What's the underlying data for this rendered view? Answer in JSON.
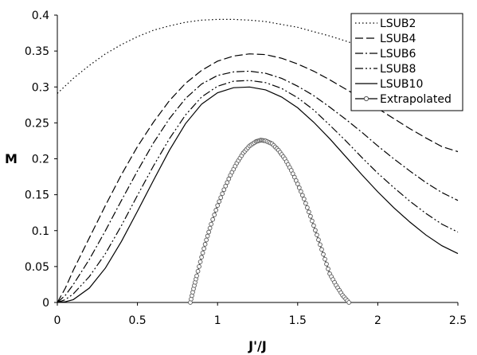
{
  "chart_data": {
    "type": "line",
    "title": "",
    "xlabel": "J'/J",
    "ylabel": "M",
    "xlim": [
      0,
      2.5
    ],
    "ylim": [
      0,
      0.4
    ],
    "x_ticks": [
      0,
      0.5,
      1,
      1.5,
      2,
      2.5
    ],
    "x_tick_labels": [
      "0",
      "0.5",
      "1",
      "1.5",
      "2",
      "2.5"
    ],
    "y_ticks": [
      0,
      0.05,
      0.1,
      0.15,
      0.2,
      0.25,
      0.3,
      0.35,
      0.4
    ],
    "y_tick_labels": [
      "0",
      "0.05",
      "0.1",
      "0.15",
      "0.2",
      "0.25",
      "0.3",
      "0.35",
      "0.4"
    ],
    "grid": false,
    "legend_position": "top-right",
    "series": [
      {
        "name": "LSUB2",
        "style": "dotted",
        "color": "#000000",
        "points": [
          [
            0,
            0.291
          ],
          [
            0.1,
            0.312
          ],
          [
            0.2,
            0.33
          ],
          [
            0.3,
            0.346
          ],
          [
            0.4,
            0.359
          ],
          [
            0.5,
            0.37
          ],
          [
            0.6,
            0.379
          ],
          [
            0.7,
            0.385
          ],
          [
            0.8,
            0.39
          ],
          [
            0.9,
            0.393
          ],
          [
            1.0,
            0.394
          ],
          [
            1.1,
            0.394
          ],
          [
            1.2,
            0.393
          ],
          [
            1.3,
            0.391
          ],
          [
            1.4,
            0.387
          ],
          [
            1.5,
            0.383
          ],
          [
            1.6,
            0.377
          ],
          [
            1.7,
            0.371
          ],
          [
            1.8,
            0.364
          ],
          [
            1.9,
            0.356
          ],
          [
            2.0,
            0.348
          ],
          [
            2.1,
            0.339
          ]
        ]
      },
      {
        "name": "LSUB4",
        "style": "dashed",
        "color": "#000000",
        "points": [
          [
            0,
            0
          ],
          [
            0.05,
            0.02
          ],
          [
            0.1,
            0.045
          ],
          [
            0.2,
            0.09
          ],
          [
            0.3,
            0.135
          ],
          [
            0.4,
            0.178
          ],
          [
            0.5,
            0.217
          ],
          [
            0.6,
            0.251
          ],
          [
            0.7,
            0.281
          ],
          [
            0.8,
            0.305
          ],
          [
            0.9,
            0.323
          ],
          [
            1.0,
            0.336
          ],
          [
            1.1,
            0.343
          ],
          [
            1.2,
            0.346
          ],
          [
            1.3,
            0.345
          ],
          [
            1.4,
            0.34
          ],
          [
            1.5,
            0.332
          ],
          [
            1.6,
            0.322
          ],
          [
            1.7,
            0.31
          ],
          [
            1.8,
            0.297
          ],
          [
            1.9,
            0.284
          ],
          [
            2.0,
            0.27
          ],
          [
            2.1,
            0.256
          ],
          [
            2.2,
            0.242
          ],
          [
            2.3,
            0.229
          ],
          [
            2.4,
            0.217
          ],
          [
            2.5,
            0.21
          ]
        ]
      },
      {
        "name": "LSUB6",
        "style": "dash-dot",
        "color": "#000000",
        "points": [
          [
            0,
            0
          ],
          [
            0.05,
            0.01
          ],
          [
            0.1,
            0.025
          ],
          [
            0.2,
            0.06
          ],
          [
            0.3,
            0.1
          ],
          [
            0.4,
            0.142
          ],
          [
            0.5,
            0.183
          ],
          [
            0.6,
            0.222
          ],
          [
            0.7,
            0.256
          ],
          [
            0.8,
            0.284
          ],
          [
            0.9,
            0.304
          ],
          [
            1.0,
            0.316
          ],
          [
            1.1,
            0.321
          ],
          [
            1.2,
            0.322
          ],
          [
            1.3,
            0.319
          ],
          [
            1.4,
            0.312
          ],
          [
            1.5,
            0.301
          ],
          [
            1.6,
            0.288
          ],
          [
            1.7,
            0.272
          ],
          [
            1.8,
            0.255
          ],
          [
            1.9,
            0.237
          ],
          [
            2.0,
            0.218
          ],
          [
            2.1,
            0.2
          ],
          [
            2.2,
            0.183
          ],
          [
            2.3,
            0.167
          ],
          [
            2.4,
            0.153
          ],
          [
            2.5,
            0.142
          ]
        ]
      },
      {
        "name": "LSUB8",
        "style": "dash-dot-dot",
        "color": "#000000",
        "points": [
          [
            0,
            0
          ],
          [
            0.05,
            0.004
          ],
          [
            0.1,
            0.012
          ],
          [
            0.2,
            0.036
          ],
          [
            0.3,
            0.068
          ],
          [
            0.4,
            0.107
          ],
          [
            0.5,
            0.149
          ],
          [
            0.6,
            0.19
          ],
          [
            0.7,
            0.228
          ],
          [
            0.8,
            0.261
          ],
          [
            0.9,
            0.286
          ],
          [
            1.0,
            0.301
          ],
          [
            1.1,
            0.308
          ],
          [
            1.2,
            0.309
          ],
          [
            1.3,
            0.306
          ],
          [
            1.4,
            0.298
          ],
          [
            1.5,
            0.285
          ],
          [
            1.6,
            0.268
          ],
          [
            1.7,
            0.247
          ],
          [
            1.8,
            0.225
          ],
          [
            1.9,
            0.202
          ],
          [
            2.0,
            0.18
          ],
          [
            2.1,
            0.16
          ],
          [
            2.2,
            0.141
          ],
          [
            2.3,
            0.124
          ],
          [
            2.4,
            0.109
          ],
          [
            2.5,
            0.098
          ]
        ]
      },
      {
        "name": "LSUB10",
        "style": "solid",
        "color": "#000000",
        "points": [
          [
            0,
            0
          ],
          [
            0.05,
            0.001
          ],
          [
            0.1,
            0.004
          ],
          [
            0.2,
            0.02
          ],
          [
            0.3,
            0.048
          ],
          [
            0.4,
            0.085
          ],
          [
            0.5,
            0.127
          ],
          [
            0.6,
            0.17
          ],
          [
            0.7,
            0.212
          ],
          [
            0.8,
            0.249
          ],
          [
            0.9,
            0.276
          ],
          [
            1.0,
            0.292
          ],
          [
            1.1,
            0.299
          ],
          [
            1.2,
            0.3
          ],
          [
            1.3,
            0.296
          ],
          [
            1.4,
            0.286
          ],
          [
            1.5,
            0.271
          ],
          [
            1.6,
            0.251
          ],
          [
            1.7,
            0.228
          ],
          [
            1.8,
            0.203
          ],
          [
            1.9,
            0.178
          ],
          [
            2.0,
            0.154
          ],
          [
            2.1,
            0.132
          ],
          [
            2.2,
            0.112
          ],
          [
            2.3,
            0.094
          ],
          [
            2.4,
            0.079
          ],
          [
            2.5,
            0.068
          ]
        ]
      },
      {
        "name": "Extrapolated",
        "style": "solid-markers",
        "color": "#000000",
        "points": [
          [
            0.83,
            0
          ],
          [
            0.85,
            0.019
          ],
          [
            0.87,
            0.037
          ],
          [
            0.9,
            0.063
          ],
          [
            0.93,
            0.087
          ],
          [
            0.96,
            0.109
          ],
          [
            1.0,
            0.135
          ],
          [
            1.04,
            0.157
          ],
          [
            1.08,
            0.177
          ],
          [
            1.12,
            0.194
          ],
          [
            1.16,
            0.208
          ],
          [
            1.2,
            0.218
          ],
          [
            1.24,
            0.224
          ],
          [
            1.27,
            0.226
          ],
          [
            1.3,
            0.225
          ],
          [
            1.34,
            0.221
          ],
          [
            1.38,
            0.212
          ],
          [
            1.42,
            0.2
          ],
          [
            1.46,
            0.184
          ],
          [
            1.5,
            0.165
          ],
          [
            1.54,
            0.144
          ],
          [
            1.58,
            0.12
          ],
          [
            1.62,
            0.094
          ],
          [
            1.66,
            0.067
          ],
          [
            1.7,
            0.04
          ],
          [
            1.74,
            0.024
          ],
          [
            1.78,
            0.01
          ],
          [
            1.82,
            0
          ]
        ]
      }
    ]
  }
}
